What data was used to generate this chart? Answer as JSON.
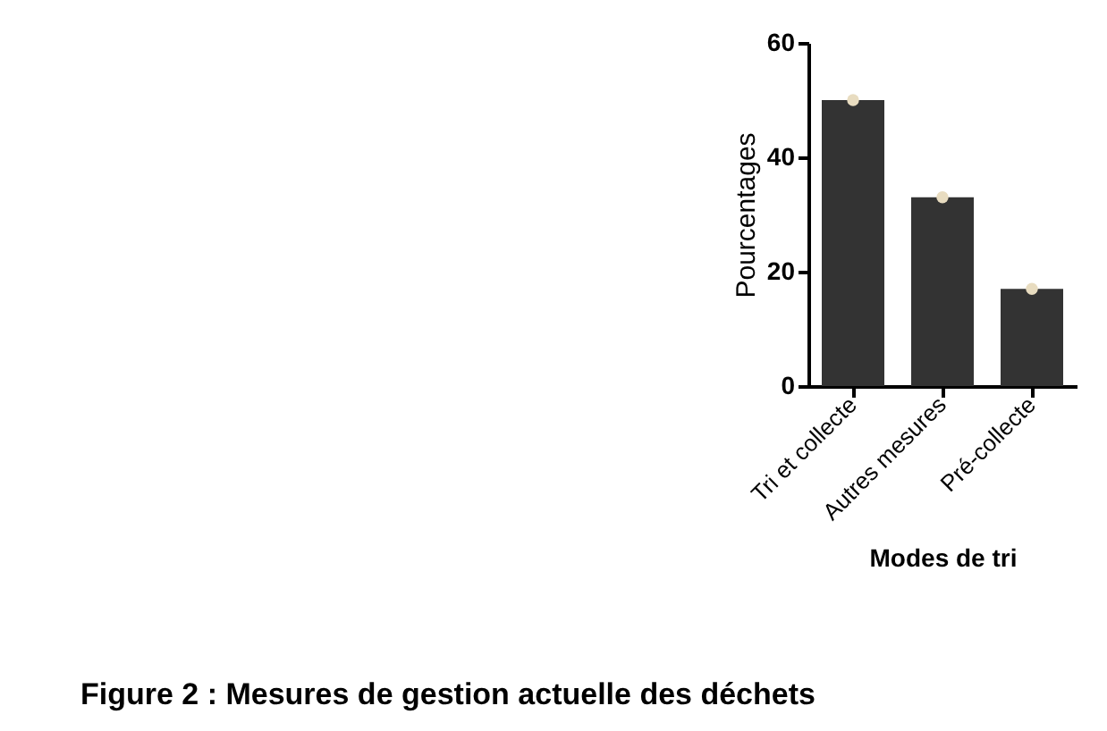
{
  "chart_data": {
    "type": "bar",
    "xlabel": "Modes de tri",
    "ylabel": "Pourcentages",
    "categories": [
      "Tri et collecte",
      "Autres mesures",
      "Pré-collecte"
    ],
    "series": [
      {
        "color": "#333333",
        "values": [
          50,
          33,
          17
        ]
      },
      {
        "type": "scatter",
        "color": "#e8dcc0",
        "marker": "circle",
        "x": [
          "Tri et collecte",
          "Autres mesures",
          "Pré-collecte"
        ],
        "values": [
          50,
          33,
          17
        ]
      }
    ],
    "ylim": [
      0,
      60
    ],
    "yticks": [
      0,
      20,
      40,
      60
    ],
    "grid": false,
    "annotations": [
      "Figure 2 : Mesures de gestion actuelle des déchets"
    ]
  }
}
